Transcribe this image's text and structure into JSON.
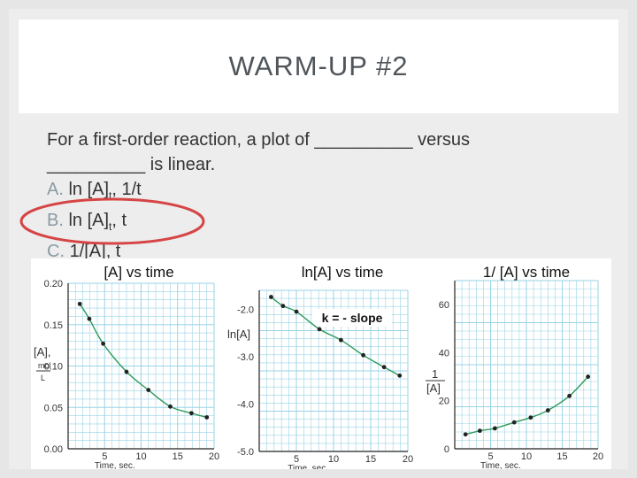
{
  "slide": {
    "title": "WARM-UP #2",
    "question_line1": "For a first-order reaction, a plot of __________ versus",
    "question_line2": "__________ is linear.",
    "options": [
      {
        "letter": "A.",
        "parts": [
          "ln [A]",
          "t",
          ", 1/t"
        ]
      },
      {
        "letter": "B.",
        "parts": [
          "ln [A]",
          "t",
          ", t"
        ]
      },
      {
        "letter": "C.",
        "parts": [
          "1/[A], t",
          "",
          ""
        ]
      }
    ],
    "circle_color": "#d64545",
    "accent_text": "#8a9aa4"
  },
  "chart_data": [
    {
      "type": "scatter",
      "title": "[A] vs time",
      "ylabel_lines": [
        "[A],",
        "mol",
        "L"
      ],
      "xlabel": "Time, sec.",
      "xlim": [
        0,
        20
      ],
      "ylim": [
        0,
        0.2
      ],
      "xticks": [
        "5",
        "10",
        "15",
        "20"
      ],
      "yticks": [
        "0.00",
        "0.05",
        "0.10",
        "0.15",
        "0.20"
      ],
      "grid": true,
      "points": [
        [
          1.6,
          0.175
        ],
        [
          2.9,
          0.157
        ],
        [
          4.8,
          0.127
        ],
        [
          8.0,
          0.093
        ],
        [
          11.0,
          0.071
        ],
        [
          14.0,
          0.051
        ],
        [
          16.9,
          0.043
        ],
        [
          19.0,
          0.038
        ]
      ],
      "curve_color": "#2e9a5a",
      "grid_color": "#9ad3e6"
    },
    {
      "type": "scatter",
      "title": "ln[A] vs time",
      "ylabel_lines": [
        "ln[A]"
      ],
      "xlabel": "Time, sec",
      "annotation": "k = - slope",
      "xlim": [
        0,
        20
      ],
      "ylim": [
        -5.0,
        -1.6
      ],
      "xticks": [
        "5",
        "10",
        "15",
        "20"
      ],
      "yticks": [
        "-2.0",
        "-3.0",
        "-4.0",
        "-5.0"
      ],
      "grid": true,
      "points": [
        [
          1.6,
          -1.74
        ],
        [
          3.2,
          -1.93
        ],
        [
          5.0,
          -2.05
        ],
        [
          8.1,
          -2.42
        ],
        [
          11.0,
          -2.65
        ],
        [
          14.0,
          -2.97
        ],
        [
          16.8,
          -3.22
        ],
        [
          18.9,
          -3.4
        ]
      ],
      "curve_color": "#2e9a5a",
      "grid_color": "#9ad3e6"
    },
    {
      "type": "scatter",
      "title": "1/ [A] vs time",
      "ylabel_lines": [
        "1",
        "[A]"
      ],
      "xlabel": "Time, sec.",
      "xlim": [
        0,
        20
      ],
      "ylim": [
        0,
        70
      ],
      "xticks": [
        "5",
        "10",
        "15",
        "20"
      ],
      "yticks": [
        "0",
        "20",
        "40",
        "60"
      ],
      "grid": true,
      "points": [
        [
          1.5,
          6
        ],
        [
          3.5,
          7.5
        ],
        [
          5.6,
          8.5
        ],
        [
          8.3,
          11
        ],
        [
          10.6,
          13
        ],
        [
          13.0,
          16
        ],
        [
          16.0,
          22
        ],
        [
          18.6,
          30
        ]
      ],
      "curve_color": "#2e9a5a",
      "grid_color": "#9ad3e6"
    }
  ]
}
